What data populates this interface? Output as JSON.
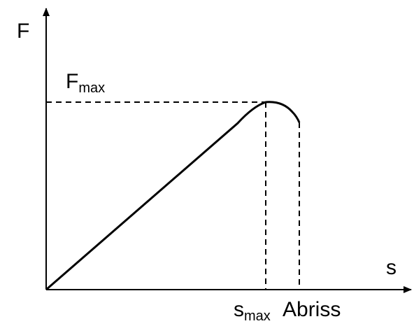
{
  "axes": {
    "y_label": "F",
    "x_label": "s"
  },
  "annotations": {
    "force_max": {
      "text": "F",
      "subscript": "max"
    },
    "displacement_max": {
      "text": "s",
      "subscript": "max"
    },
    "break": {
      "text": "Abriss"
    }
  }
}
